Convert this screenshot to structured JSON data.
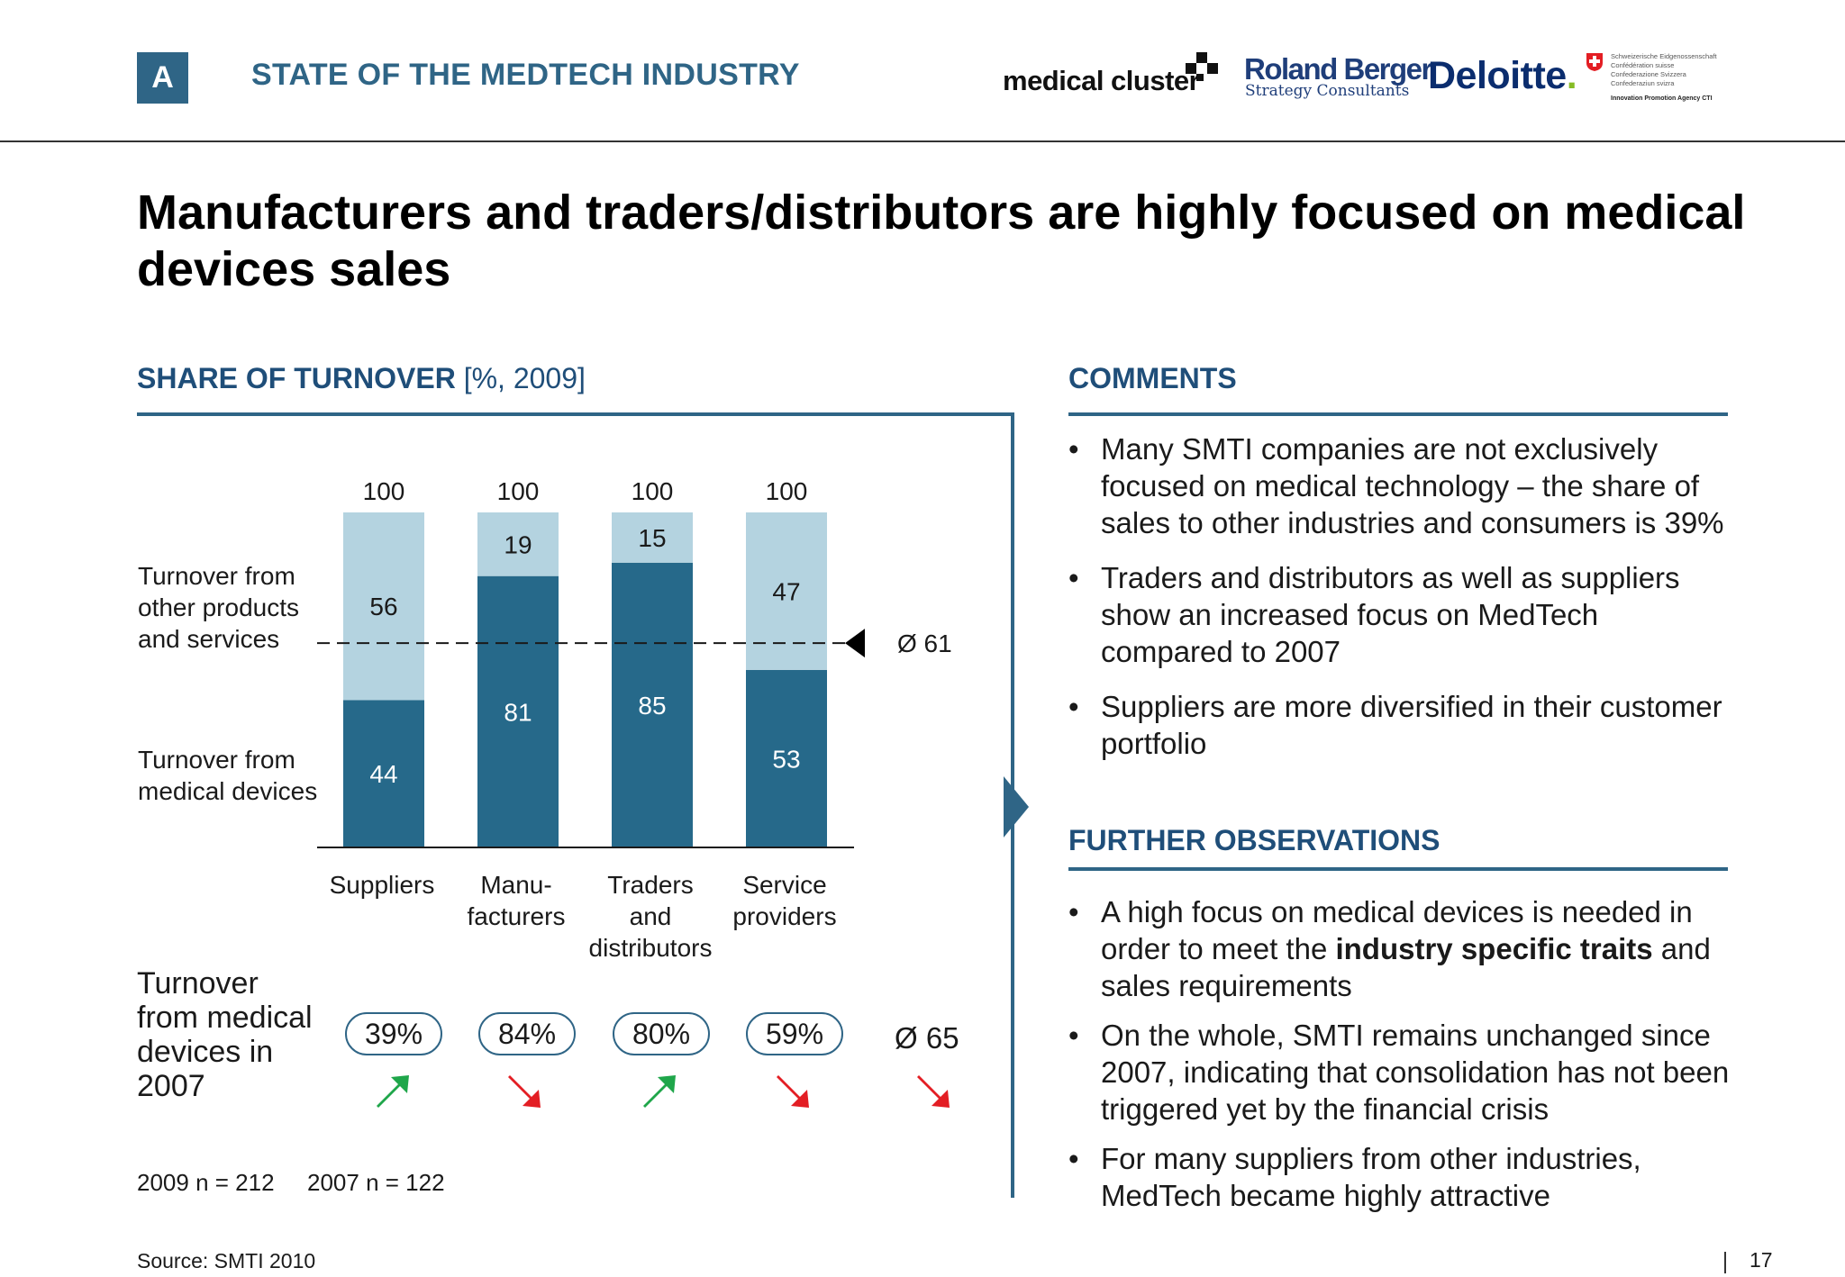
{
  "header": {
    "badge": "A",
    "title": "STATE OF THE MEDTECH INDUSTRY",
    "logos": {
      "medical_cluster": "medical cluster",
      "roland_berger": "Roland Berger",
      "roland_berger_sub": "Strategy Consultants",
      "deloitte": "Deloitte",
      "swiss_lines": [
        "Schweizerische Eidgenossenschaft",
        "Confédération suisse",
        "Confederazione Svizzera",
        "Confederaziun svizra"
      ],
      "swiss_agency": "Innovation Promotion Agency CTI"
    }
  },
  "title": "Manufacturers and traders/distributors are highly focused on medical devices sales",
  "left_section": {
    "title_bold": "SHARE OF TURNOVER",
    "title_light": " [%, 2009]",
    "label_other": "Turnover from other products and services",
    "label_medical": "Turnover from medical devices",
    "turnover_2007_label": "Turnover from medical devices in 2007",
    "pills": [
      "39%",
      "84%",
      "80%",
      "59%"
    ],
    "trends": [
      "up",
      "down",
      "up",
      "down"
    ],
    "avg_2007": "Ø 65",
    "avg_2007_trend": "down",
    "n_2009": "2009 n = 212",
    "n_2007": "2007 n = 122"
  },
  "chart_data": {
    "type": "bar",
    "stacked": true,
    "categories": [
      "Suppliers",
      "Manu-\nfacturers",
      "Traders\nand\ndistributors",
      "Service\nproviders"
    ],
    "series": [
      {
        "name": "Turnover from medical devices",
        "values": [
          44,
          81,
          85,
          53
        ],
        "color": "#26698a"
      },
      {
        "name": "Turnover from other products and services",
        "values": [
          56,
          19,
          15,
          47
        ],
        "color": "#b4d3e0"
      }
    ],
    "totals": [
      "100",
      "100",
      "100",
      "100"
    ],
    "average_line": {
      "value": 61,
      "label": "Ø 61"
    },
    "ylim": [
      0,
      100
    ]
  },
  "comments": {
    "title": "COMMENTS",
    "items": [
      "Many SMTI companies are not exclusively focused on medical technology – the share of sales to other industries and consumers is 39%",
      "Traders and distributors as well as suppliers show an increased focus on MedTech compared to 2007",
      "Suppliers are more diversified in their customer portfolio"
    ]
  },
  "further": {
    "title": "FURTHER OBSERVATIONS",
    "item1_pre": "A high focus on medical devices is needed in order to meet the ",
    "item1_bold": "industry specific traits",
    "item1_post": " and sales requirements",
    "item2": "On the whole, SMTI remains unchanged since 2007, indicating that consolidation has not been triggered yet by the financial crisis",
    "item3": "For many suppliers from other industries, MedTech became highly attractive"
  },
  "footer": {
    "source": "Source:  SMTI 2010",
    "page": "17"
  },
  "colors": {
    "accent": "#2f6586",
    "dark_bar": "#26698a",
    "light_bar": "#b4d3e0",
    "up_arrow": "#1fa64a",
    "down_arrow": "#e31e24"
  }
}
